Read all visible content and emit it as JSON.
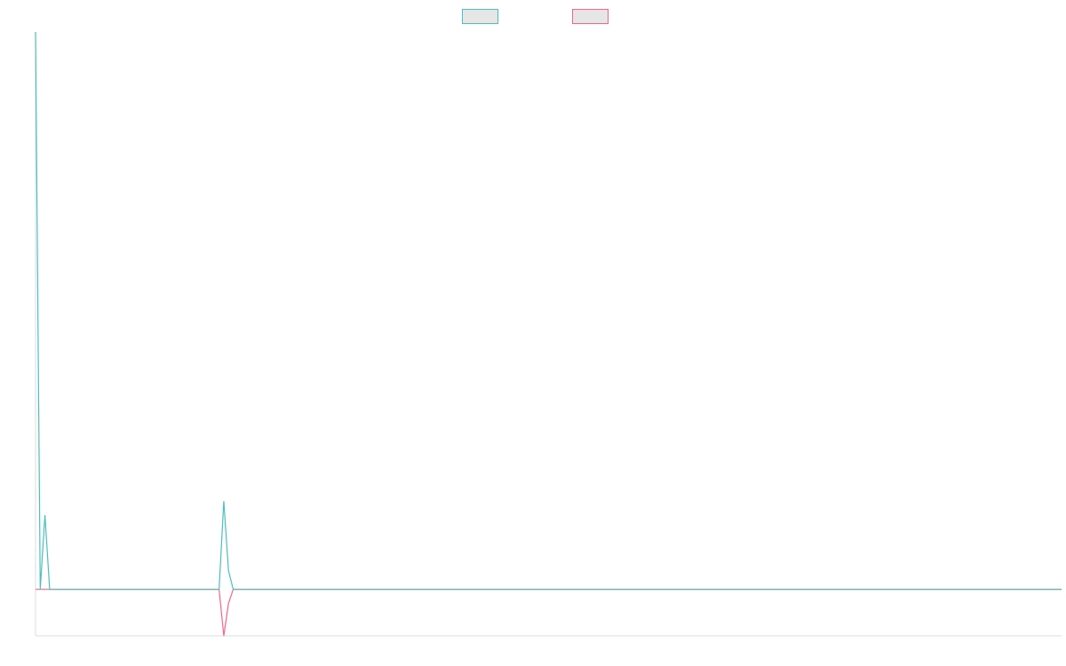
{
  "chart_data": {
    "type": "line",
    "title": "",
    "xlabel": "",
    "ylabel": "",
    "grid": false,
    "legend_position": "top-center",
    "x_range": [
      0,
      218
    ],
    "ylim": [
      -10,
      120
    ],
    "series": [
      {
        "color": "#4bc0c0",
        "fill": "#e6e6e6",
        "points": [
          [
            0,
            120
          ],
          [
            1,
            0
          ],
          [
            2,
            16
          ],
          [
            3,
            0
          ],
          [
            4,
            0
          ],
          [
            39,
            0
          ],
          [
            40,
            19
          ],
          [
            41,
            4
          ],
          [
            42,
            0
          ],
          [
            218,
            0
          ]
        ]
      },
      {
        "color": "#ff6384",
        "fill": "#e6e6e6",
        "points": [
          [
            0,
            0
          ],
          [
            39,
            0
          ],
          [
            40,
            -10
          ],
          [
            41,
            -3
          ],
          [
            42,
            0
          ],
          [
            218,
            0
          ]
        ]
      }
    ]
  }
}
